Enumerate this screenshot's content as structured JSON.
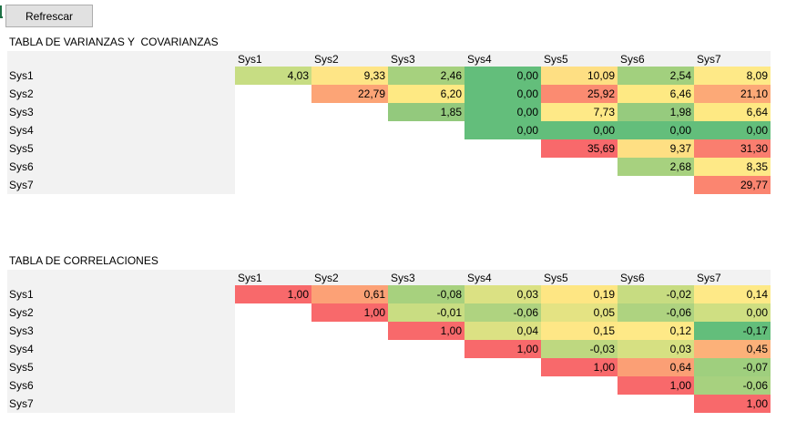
{
  "toolbar": {
    "refresh_label": "Refrescar"
  },
  "covariance_table": {
    "title": "TABLA DE VARIANZAS Y  COVARIANZAS",
    "columns": [
      "Sys1",
      "Sys2",
      "Sys3",
      "Sys4",
      "Sys5",
      "Sys6",
      "Sys7"
    ],
    "rows": [
      {
        "label": "Sys1",
        "values": [
          "4,03",
          "9,33",
          "2,46",
          "0,00",
          "10,09",
          "2,54",
          "8,09"
        ],
        "colors": [
          "#c7dd83",
          "#fee586",
          "#a6d17e",
          "#63be7b",
          "#fedf83",
          "#a2d07e",
          "#fee987"
        ]
      },
      {
        "label": "Sys2",
        "values": [
          "",
          "22,79",
          "6,20",
          "0,00",
          "25,92",
          "6,46",
          "21,10"
        ],
        "colors": [
          "",
          "#fca476",
          "#fee983",
          "#63be7b",
          "#fb8b71",
          "#fee983",
          "#fca977"
        ]
      },
      {
        "label": "Sys3",
        "values": [
          "",
          "",
          "1,85",
          "0,00",
          "7,73",
          "1,98",
          "6,64"
        ],
        "colors": [
          "",
          "",
          "#93c97d",
          "#63be7b",
          "#fee987",
          "#96cb7e",
          "#fee983"
        ]
      },
      {
        "label": "Sys4",
        "values": [
          "",
          "",
          "",
          "0,00",
          "0,00",
          "0,00",
          "0,00"
        ],
        "colors": [
          "",
          "",
          "",
          "#63be7b",
          "#63be7b",
          "#63be7b",
          "#63be7b"
        ]
      },
      {
        "label": "Sys5",
        "values": [
          "",
          "",
          "",
          "",
          "35,69",
          "9,37",
          "31,30"
        ],
        "colors": [
          "",
          "",
          "",
          "",
          "#f8696b",
          "#fedf83",
          "#fa7e6f"
        ]
      },
      {
        "label": "Sys6",
        "values": [
          "",
          "",
          "",
          "",
          "",
          "2,68",
          "8,35"
        ],
        "colors": [
          "",
          "",
          "",
          "",
          "",
          "#a7d17f",
          "#fee987"
        ]
      },
      {
        "label": "Sys7",
        "values": [
          "",
          "",
          "",
          "",
          "",
          "",
          "29,77"
        ],
        "colors": [
          "",
          "",
          "",
          "",
          "",
          "",
          "#fb8570"
        ]
      }
    ]
  },
  "correlation_table": {
    "title": "TABLA DE CORRELACIONES",
    "columns": [
      "Sys1",
      "Sys2",
      "Sys3",
      "Sys4",
      "Sys5",
      "Sys6",
      "Sys7"
    ],
    "rows": [
      {
        "label": "Sys1",
        "values": [
          "1,00",
          "0,61",
          "-0,08",
          "0,03",
          "0,19",
          "-0,02",
          "0,14"
        ],
        "colors": [
          "#f8696b",
          "#fca176",
          "#a7d17e",
          "#dbe183",
          "#fee683",
          "#c7dc81",
          "#fee987"
        ]
      },
      {
        "label": "Sys2",
        "values": [
          "",
          "1,00",
          "-0,01",
          "-0,06",
          "0,05",
          "-0,06",
          "0,00"
        ],
        "colors": [
          "",
          "#f8696b",
          "#c9dd82",
          "#afd380",
          "#e4e383",
          "#aed380",
          "#cfdf82"
        ]
      },
      {
        "label": "Sys3",
        "values": [
          "",
          "",
          "1,00",
          "0,04",
          "0,15",
          "0,12",
          "-0,17"
        ],
        "colors": [
          "",
          "",
          "#f8696b",
          "#dce183",
          "#fee786",
          "#fee987",
          "#63be7b"
        ]
      },
      {
        "label": "Sys4",
        "values": [
          "",
          "",
          "",
          "1,00",
          "-0,03",
          "0,03",
          "0,45"
        ],
        "colors": [
          "",
          "",
          "",
          "#f8696b",
          "#bed880",
          "#d6e082",
          "#fcb179"
        ]
      },
      {
        "label": "Sys5",
        "values": [
          "",
          "",
          "",
          "",
          "1,00",
          "0,64",
          "-0,07"
        ],
        "colors": [
          "",
          "",
          "",
          "",
          "#f8696b",
          "#fb9f75",
          "#9fcf7e"
        ]
      },
      {
        "label": "Sys6",
        "values": [
          "",
          "",
          "",
          "",
          "",
          "1,00",
          "-0,06"
        ],
        "colors": [
          "",
          "",
          "",
          "",
          "",
          "#f8696b",
          "#a7d17f"
        ]
      },
      {
        "label": "Sys7",
        "values": [
          "",
          "",
          "",
          "",
          "",
          "",
          "1,00"
        ],
        "colors": [
          "",
          "",
          "",
          "",
          "",
          "",
          "#f8696b"
        ]
      }
    ]
  }
}
